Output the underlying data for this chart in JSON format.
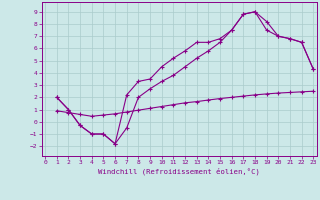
{
  "background_color": "#cce8e8",
  "grid_color": "#aacccc",
  "line_color": "#880088",
  "xlim": [
    -0.3,
    23.3
  ],
  "ylim": [
    -2.8,
    9.8
  ],
  "xticks": [
    0,
    1,
    2,
    3,
    4,
    5,
    6,
    7,
    8,
    9,
    10,
    11,
    12,
    13,
    14,
    15,
    16,
    17,
    18,
    19,
    20,
    21,
    22,
    23
  ],
  "yticks": [
    -2,
    -1,
    0,
    1,
    2,
    3,
    4,
    5,
    6,
    7,
    8,
    9
  ],
  "xlabel": "Windchill (Refroidissement éolien,°C)",
  "line1_x": [
    1,
    2,
    3,
    4,
    5,
    6,
    7,
    8,
    9,
    10,
    11,
    12,
    13,
    14,
    15,
    16,
    17,
    18,
    19,
    20,
    21,
    22,
    23
  ],
  "line1_y": [
    2.0,
    1.0,
    -0.3,
    -1.0,
    -1.0,
    -1.8,
    -0.5,
    2.0,
    2.7,
    3.3,
    3.8,
    4.5,
    5.2,
    5.8,
    6.5,
    7.5,
    8.8,
    9.0,
    7.5,
    7.0,
    6.8,
    6.5,
    4.3
  ],
  "line2_x": [
    1,
    2,
    3,
    4,
    5,
    6,
    7,
    8,
    9,
    10,
    11,
    12,
    13,
    14,
    15,
    16,
    17,
    18,
    19,
    20,
    21,
    22,
    23
  ],
  "line2_y": [
    2.0,
    1.0,
    -0.3,
    -1.0,
    -1.0,
    -1.8,
    2.2,
    3.3,
    3.5,
    4.5,
    5.2,
    5.8,
    6.5,
    6.5,
    6.8,
    7.5,
    8.8,
    9.0,
    8.2,
    7.0,
    6.8,
    6.5,
    4.3
  ],
  "line3_x": [
    1,
    2,
    3,
    4,
    5,
    6,
    7,
    8,
    9,
    10,
    11,
    12,
    13,
    14,
    15,
    16,
    17,
    18,
    19,
    20,
    21,
    22,
    23
  ],
  "line3_y": [
    0.9,
    0.75,
    0.6,
    0.45,
    0.55,
    0.65,
    0.8,
    0.95,
    1.1,
    1.25,
    1.4,
    1.55,
    1.65,
    1.78,
    1.9,
    2.0,
    2.1,
    2.2,
    2.28,
    2.35,
    2.4,
    2.45,
    2.5
  ],
  "marker_size": 3.5,
  "linewidth": 0.8
}
